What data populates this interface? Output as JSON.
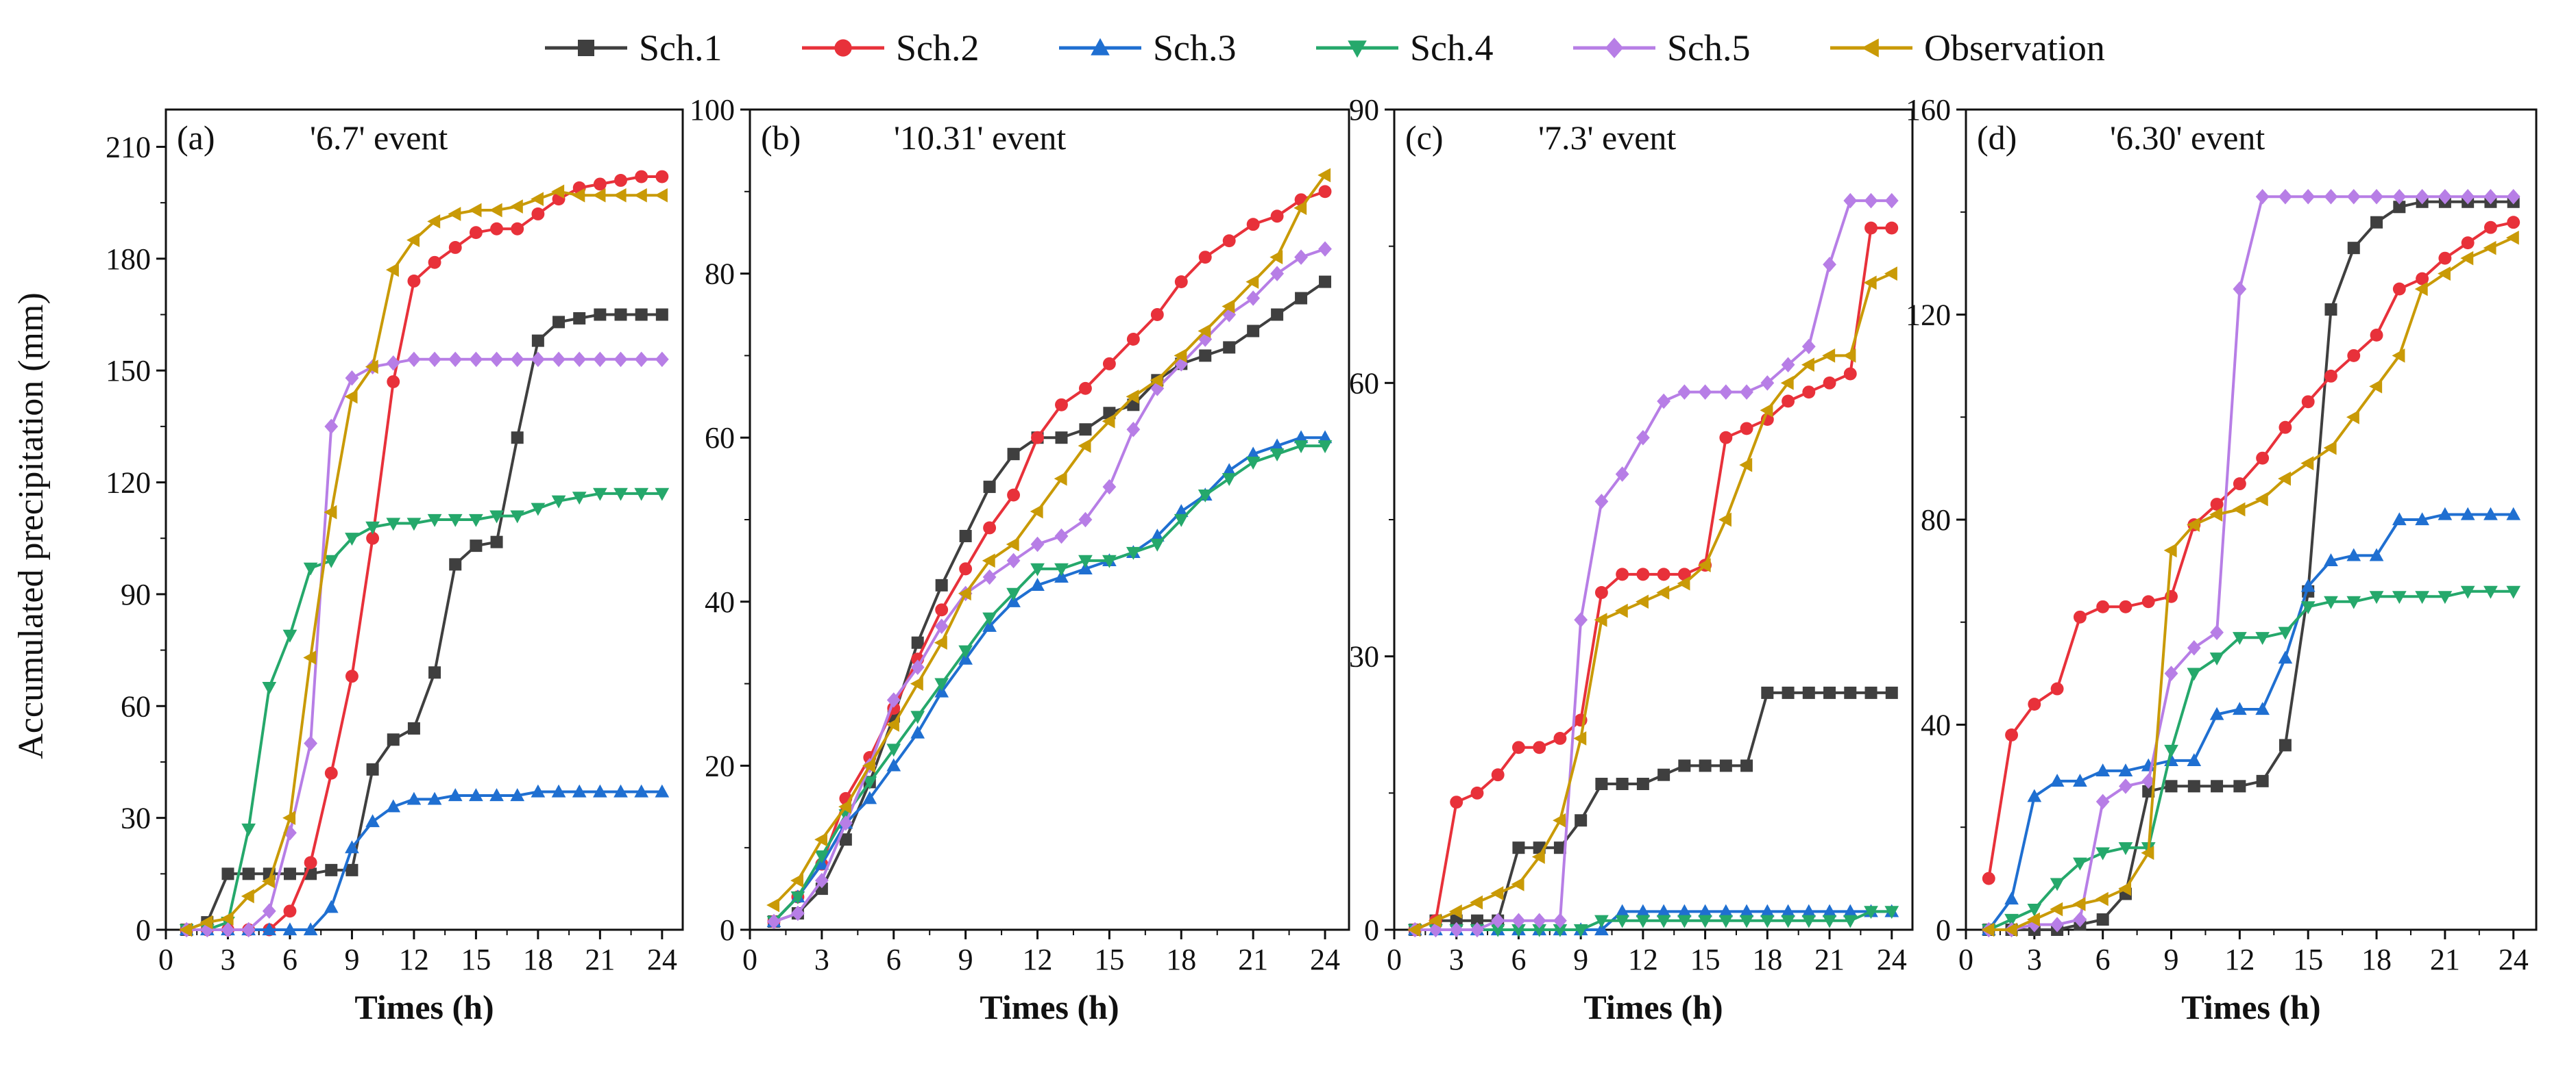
{
  "legend": [
    {
      "name": "Sch.1",
      "color": "#3f3f3f",
      "marker": "square"
    },
    {
      "name": "Sch.2",
      "color": "#e8313a",
      "marker": "circle"
    },
    {
      "name": "Sch.3",
      "color": "#1f6fd1",
      "marker": "triangle-up"
    },
    {
      "name": "Sch.4",
      "color": "#25a86b",
      "marker": "triangle-down"
    },
    {
      "name": "Sch.5",
      "color": "#b77ee6",
      "marker": "diamond"
    },
    {
      "name": "Observation",
      "color": "#c99a06",
      "marker": "triangle-left"
    }
  ],
  "shared": {
    "ylabel": "Accumulated precipitation (mm)",
    "xlabel": "Times (h)"
  },
  "chart_data": [
    {
      "type": "line",
      "label": "(a)",
      "title": "'6.7' event",
      "x": [
        1,
        2,
        3,
        4,
        5,
        6,
        7,
        8,
        9,
        10,
        11,
        12,
        13,
        14,
        15,
        16,
        17,
        18,
        19,
        20,
        21,
        22,
        23,
        24
      ],
      "xlim": [
        0,
        25
      ],
      "xticks": [
        0,
        3,
        6,
        9,
        12,
        15,
        18,
        21,
        24
      ],
      "ylim": [
        0,
        220
      ],
      "yticks": [
        0,
        30,
        60,
        90,
        120,
        150,
        180,
        210
      ],
      "series": [
        {
          "name": "Sch.1",
          "values": [
            0,
            2,
            15,
            15,
            15,
            15,
            15,
            16,
            16,
            43,
            51,
            54,
            69,
            98,
            103,
            104,
            132,
            158,
            163,
            164,
            165,
            165,
            165,
            165
          ]
        },
        {
          "name": "Sch.2",
          "values": [
            0,
            0,
            0,
            0,
            0,
            5,
            18,
            42,
            68,
            105,
            147,
            174,
            179,
            183,
            187,
            188,
            188,
            192,
            196,
            199,
            200,
            201,
            202,
            202
          ]
        },
        {
          "name": "Sch.3",
          "values": [
            0,
            0,
            0,
            0,
            0,
            0,
            0,
            6,
            22,
            29,
            33,
            35,
            35,
            36,
            36,
            36,
            36,
            37,
            37,
            37,
            37,
            37,
            37,
            37
          ]
        },
        {
          "name": "Sch.4",
          "values": [
            0,
            0,
            2,
            27,
            65,
            79,
            97,
            99,
            105,
            108,
            109,
            109,
            110,
            110,
            110,
            111,
            111,
            113,
            115,
            116,
            117,
            117,
            117,
            117
          ]
        },
        {
          "name": "Sch.5",
          "values": [
            0,
            0,
            0,
            0,
            5,
            26,
            50,
            135,
            148,
            151,
            152,
            153,
            153,
            153,
            153,
            153,
            153,
            153,
            153,
            153,
            153,
            153,
            153,
            153
          ]
        },
        {
          "name": "Observation",
          "values": [
            0,
            2,
            3,
            9,
            13,
            30,
            73,
            112,
            143,
            151,
            177,
            185,
            190,
            192,
            193,
            193,
            194,
            196,
            198,
            197,
            197,
            197,
            197,
            197
          ]
        }
      ]
    },
    {
      "type": "line",
      "label": "(b)",
      "title": "'10.31' event",
      "x": [
        1,
        2,
        3,
        4,
        5,
        6,
        7,
        8,
        9,
        10,
        11,
        12,
        13,
        14,
        15,
        16,
        17,
        18,
        19,
        20,
        21,
        22,
        23,
        24
      ],
      "xlim": [
        0,
        25
      ],
      "xticks": [
        0,
        3,
        6,
        9,
        12,
        15,
        18,
        21,
        24
      ],
      "ylim": [
        0,
        100
      ],
      "yticks": [
        0,
        20,
        40,
        60,
        80,
        100
      ],
      "series": [
        {
          "name": "Sch.1",
          "values": [
            1,
            2,
            5,
            11,
            18,
            26,
            35,
            42,
            48,
            54,
            58,
            60,
            60,
            61,
            63,
            64,
            67,
            69,
            70,
            71,
            73,
            75,
            77,
            79
          ]
        },
        {
          "name": "Sch.2",
          "values": [
            1,
            4,
            8,
            16,
            21,
            27,
            33,
            39,
            44,
            49,
            53,
            60,
            64,
            66,
            69,
            72,
            75,
            79,
            82,
            84,
            86,
            87,
            89,
            90
          ]
        },
        {
          "name": "Sch.3",
          "values": [
            1,
            4,
            8,
            13,
            16,
            20,
            24,
            29,
            33,
            37,
            40,
            42,
            43,
            44,
            45,
            46,
            48,
            51,
            53,
            56,
            58,
            59,
            60,
            60
          ]
        },
        {
          "name": "Sch.4",
          "values": [
            1,
            4,
            9,
            14,
            18,
            22,
            26,
            30,
            34,
            38,
            41,
            44,
            44,
            45,
            45,
            46,
            47,
            50,
            53,
            55,
            57,
            58,
            59,
            59
          ]
        },
        {
          "name": "Sch.5",
          "values": [
            1,
            2,
            6,
            13,
            20,
            28,
            32,
            37,
            41,
            43,
            45,
            47,
            48,
            50,
            54,
            61,
            66,
            69,
            72,
            75,
            77,
            80,
            82,
            83
          ]
        },
        {
          "name": "Observation",
          "values": [
            3,
            6,
            11,
            15,
            20,
            25,
            30,
            35,
            41,
            45,
            47,
            51,
            55,
            59,
            62,
            65,
            67,
            70,
            73,
            76,
            79,
            82,
            88,
            92
          ]
        }
      ]
    },
    {
      "type": "line",
      "label": "(c)",
      "title": "'7.3' event",
      "x": [
        1,
        2,
        3,
        4,
        5,
        6,
        7,
        8,
        9,
        10,
        11,
        12,
        13,
        14,
        15,
        16,
        17,
        18,
        19,
        20,
        21,
        22,
        23,
        24
      ],
      "xlim": [
        0,
        25
      ],
      "xticks": [
        0,
        3,
        6,
        9,
        12,
        15,
        18,
        21,
        24
      ],
      "ylim": [
        0,
        90
      ],
      "yticks": [
        0,
        30,
        60,
        90
      ],
      "series": [
        {
          "name": "Sch.1",
          "values": [
            0,
            1,
            1,
            1,
            1,
            9,
            9,
            9,
            12,
            16,
            16,
            16,
            17,
            18,
            18,
            18,
            18,
            26,
            26,
            26,
            26,
            26,
            26,
            26
          ]
        },
        {
          "name": "Sch.2",
          "values": [
            0,
            1,
            14,
            15,
            17,
            20,
            20,
            21,
            23,
            37,
            39,
            39,
            39,
            39,
            40,
            54,
            55,
            56,
            58,
            59,
            60,
            61,
            77,
            77
          ]
        },
        {
          "name": "Sch.3",
          "values": [
            0,
            0,
            0,
            0,
            0,
            0,
            0,
            0,
            0,
            0,
            2,
            2,
            2,
            2,
            2,
            2,
            2,
            2,
            2,
            2,
            2,
            2,
            2,
            2
          ]
        },
        {
          "name": "Sch.4",
          "values": [
            0,
            0,
            0,
            0,
            0,
            0,
            0,
            0,
            0,
            1,
            1,
            1,
            1,
            1,
            1,
            1,
            1,
            1,
            1,
            1,
            1,
            1,
            2,
            2
          ]
        },
        {
          "name": "Sch.5",
          "values": [
            0,
            0,
            0,
            0,
            1,
            1,
            1,
            1,
            34,
            47,
            50,
            54,
            58,
            59,
            59,
            59,
            59,
            60,
            62,
            64,
            73,
            80,
            80,
            80
          ]
        },
        {
          "name": "Observation",
          "values": [
            0,
            1,
            2,
            3,
            4,
            5,
            8,
            12,
            21,
            34,
            35,
            36,
            37,
            38,
            40,
            45,
            51,
            57,
            60,
            62,
            63,
            63,
            71,
            72
          ]
        }
      ]
    },
    {
      "type": "line",
      "label": "(d)",
      "title": "'6.30' event",
      "x": [
        1,
        2,
        3,
        4,
        5,
        6,
        7,
        8,
        9,
        10,
        11,
        12,
        13,
        14,
        15,
        16,
        17,
        18,
        19,
        20,
        21,
        22,
        23,
        24
      ],
      "xlim": [
        0,
        25
      ],
      "xticks": [
        0,
        3,
        6,
        9,
        12,
        15,
        18,
        21,
        24
      ],
      "ylim": [
        0,
        160
      ],
      "yticks": [
        0,
        40,
        80,
        120,
        160
      ],
      "series": [
        {
          "name": "Sch.1",
          "values": [
            0,
            0,
            0,
            0,
            1,
            2,
            7,
            27,
            28,
            28,
            28,
            28,
            29,
            36,
            66,
            121,
            133,
            138,
            141,
            142,
            142,
            142,
            142,
            142
          ]
        },
        {
          "name": "Sch.2",
          "values": [
            10,
            38,
            44,
            47,
            61,
            63,
            63,
            64,
            65,
            79,
            83,
            87,
            92,
            98,
            103,
            108,
            112,
            116,
            125,
            127,
            131,
            134,
            137,
            138
          ]
        },
        {
          "name": "Sch.3",
          "values": [
            0,
            6,
            26,
            29,
            29,
            31,
            31,
            32,
            33,
            33,
            42,
            43,
            43,
            53,
            67,
            72,
            73,
            73,
            80,
            80,
            81,
            81,
            81,
            81
          ]
        },
        {
          "name": "Sch.4",
          "values": [
            0,
            2,
            4,
            9,
            13,
            15,
            16,
            16,
            35,
            50,
            53,
            57,
            57,
            58,
            63,
            64,
            64,
            65,
            65,
            65,
            65,
            66,
            66,
            66
          ]
        },
        {
          "name": "Sch.5",
          "values": [
            0,
            0,
            1,
            1,
            2,
            25,
            28,
            29,
            50,
            55,
            58,
            125,
            143,
            143,
            143,
            143,
            143,
            143,
            143,
            143,
            143,
            143,
            143,
            143
          ]
        },
        {
          "name": "Observation",
          "values": [
            0,
            0,
            2,
            4,
            5,
            6,
            8,
            15,
            74,
            79,
            81,
            82,
            84,
            88,
            91,
            94,
            100,
            106,
            112,
            125,
            128,
            131,
            133,
            135
          ]
        }
      ]
    }
  ]
}
